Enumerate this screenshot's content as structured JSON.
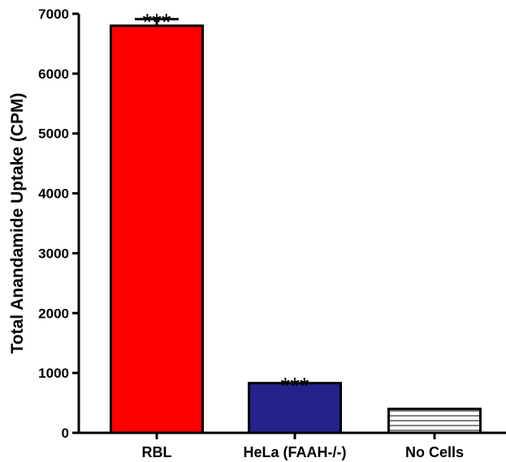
{
  "chart_data": {
    "type": "bar",
    "title": "",
    "xlabel": "",
    "ylabel": "Total Anandamide Uptake (CPM)",
    "ylim": [
      0,
      7000
    ],
    "yticks": [
      0,
      1000,
      2000,
      3000,
      4000,
      5000,
      6000,
      7000
    ],
    "grid": false,
    "categories": [
      "RBL",
      "HeLa (FAAH-/-)",
      "No Cells"
    ],
    "values": [
      6800,
      830,
      400
    ],
    "error": [
      110,
      0,
      0
    ],
    "significance": [
      "***",
      "***",
      ""
    ],
    "colors": [
      "#ff0000",
      "#23238b",
      "#ffffff"
    ],
    "fill_patterns": [
      "solid",
      "solid",
      "horizontal-lines"
    ]
  }
}
